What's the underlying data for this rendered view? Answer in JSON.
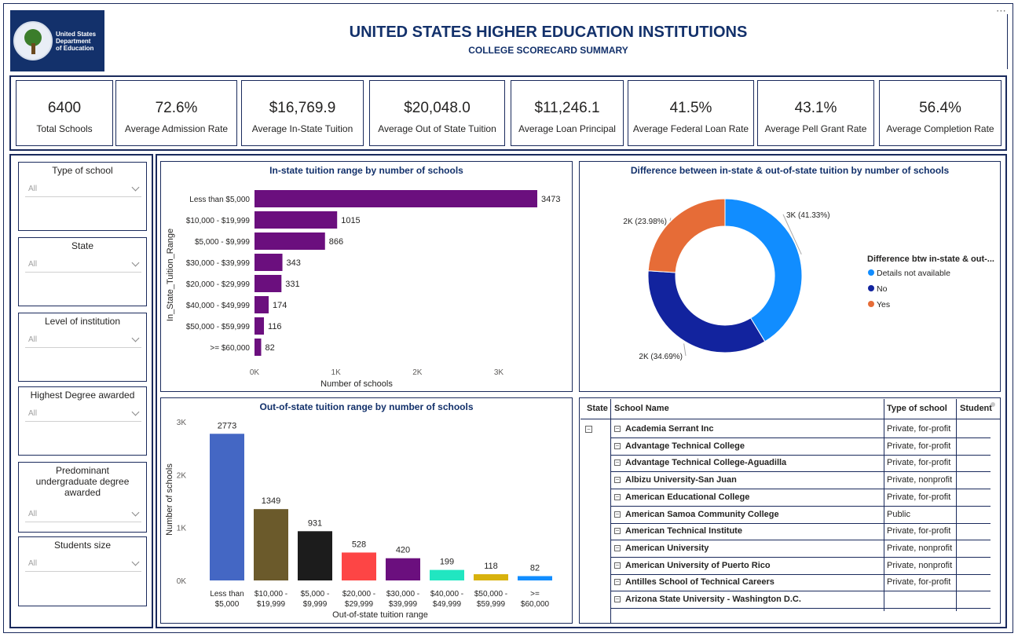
{
  "header": {
    "logo_text": [
      "United States",
      "Department",
      "of Education"
    ],
    "title": "UNITED STATES HIGHER EDUCATION INSTITUTIONS",
    "subtitle": "COLLEGE SCORECARD SUMMARY",
    "more_icon": "⋯"
  },
  "kpis": [
    {
      "value": "6400",
      "label": "Total Schools"
    },
    {
      "value": "72.6%",
      "label": "Average Admission Rate"
    },
    {
      "value": "$16,769.9",
      "label": "Average In-State Tuition"
    },
    {
      "value": "$20,048.0",
      "label": "Average Out of State Tuition"
    },
    {
      "value": "$11,246.1",
      "label": "Average Loan Principal"
    },
    {
      "value": "41.5%",
      "label": "Average Federal Loan Rate"
    },
    {
      "value": "43.1%",
      "label": "Average Pell Grant Rate"
    },
    {
      "value": "56.4%",
      "label": "Average Completion Rate"
    }
  ],
  "slicers": [
    {
      "title": "Type of school",
      "value": "All"
    },
    {
      "title": "State",
      "value": "All"
    },
    {
      "title": "Level of institution",
      "value": "All"
    },
    {
      "title": "Highest Degree awarded",
      "value": "All"
    },
    {
      "title": "Predominant undergraduate degree awarded",
      "value": "All"
    },
    {
      "title": "Students size",
      "value": "All"
    }
  ],
  "chart_data": [
    {
      "type": "bar",
      "orientation": "horizontal",
      "title": "In-state tuition range by number of schools",
      "xlabel": "Number of schools",
      "ylabel": "In_State_Tuition_Range",
      "categories": [
        "Less than $5,000",
        "$10,000 - $19,999",
        "$5,000 - $9,999",
        "$30,000 - $39,999",
        "$20,000 - $29,999",
        "$40,000 - $49,999",
        "$50,000 - $59,999",
        ">= $60,000"
      ],
      "values": [
        3473,
        1015,
        866,
        343,
        331,
        174,
        116,
        82
      ],
      "xticks": [
        0,
        1000,
        2000,
        3000
      ],
      "xtick_labels": [
        "0K",
        "1K",
        "2K",
        "3K"
      ],
      "xlim": [
        0,
        3473
      ],
      "color": "#6b0f7e"
    },
    {
      "type": "pie",
      "title": "Difference between in-state & out-of-state tuition by number of schools",
      "legend_title": "Difference btw in-state & out-...",
      "legend_position": "right",
      "labels": [
        "Details not available",
        "No",
        "Yes"
      ],
      "percentages": [
        41.33,
        34.69,
        23.98
      ],
      "data_labels": [
        "3K (41.33%)",
        "2K (34.69%)",
        "2K (23.98%)"
      ],
      "colors": [
        "#118dff",
        "#12239e",
        "#e66c37"
      ]
    },
    {
      "type": "bar",
      "orientation": "vertical",
      "title": "Out-of-state tuition range by number of schools",
      "xlabel": "Out-of-state tuition range",
      "ylabel": "Number of schools",
      "categories": [
        [
          "Less than",
          "$5,000"
        ],
        [
          "$10,000 -",
          "$19,999"
        ],
        [
          "$5,000 -",
          "$9,999"
        ],
        [
          "$20,000 -",
          "$29,999"
        ],
        [
          "$30,000 -",
          "$39,999"
        ],
        [
          "$40,000 -",
          "$49,999"
        ],
        [
          "$50,000 -",
          "$59,999"
        ],
        [
          ">=",
          "$60,000"
        ]
      ],
      "values": [
        2773,
        1349,
        931,
        528,
        420,
        199,
        118,
        82
      ],
      "yticks": [
        0,
        1000,
        2000,
        3000
      ],
      "ytick_labels": [
        "0K",
        "1K",
        "2K",
        "3K"
      ],
      "ylim": [
        0,
        3000
      ],
      "colors": [
        "#4467c4",
        "#6b5a2b",
        "#1c1c1c",
        "#fd4545",
        "#6b0f7e",
        "#21e6c1",
        "#d8b20d",
        "#118dff"
      ]
    }
  ],
  "table": {
    "columns": [
      "State",
      "School Name",
      "Type of school",
      "Student"
    ],
    "rows": [
      {
        "name": "Academia Serrant Inc",
        "type": "Private, for-profit"
      },
      {
        "name": "Advantage Technical College",
        "type": "Private, for-profit"
      },
      {
        "name": "Advantage Technical College-Aguadilla",
        "type": "Private, for-profit"
      },
      {
        "name": "Albizu University-San Juan",
        "type": "Private, nonprofit"
      },
      {
        "name": "American Educational College",
        "type": "Private, for-profit"
      },
      {
        "name": "American Samoa Community College",
        "type": "Public"
      },
      {
        "name": "American Technical Institute",
        "type": "Private, for-profit"
      },
      {
        "name": "American University",
        "type": "Private, nonprofit"
      },
      {
        "name": "American University of Puerto Rico",
        "type": "Private, nonprofit"
      },
      {
        "name": "Antilles School of Technical Careers",
        "type": "Private, for-profit"
      },
      {
        "name": "Arizona State University - Washington D.C.",
        "type": ""
      }
    ]
  }
}
